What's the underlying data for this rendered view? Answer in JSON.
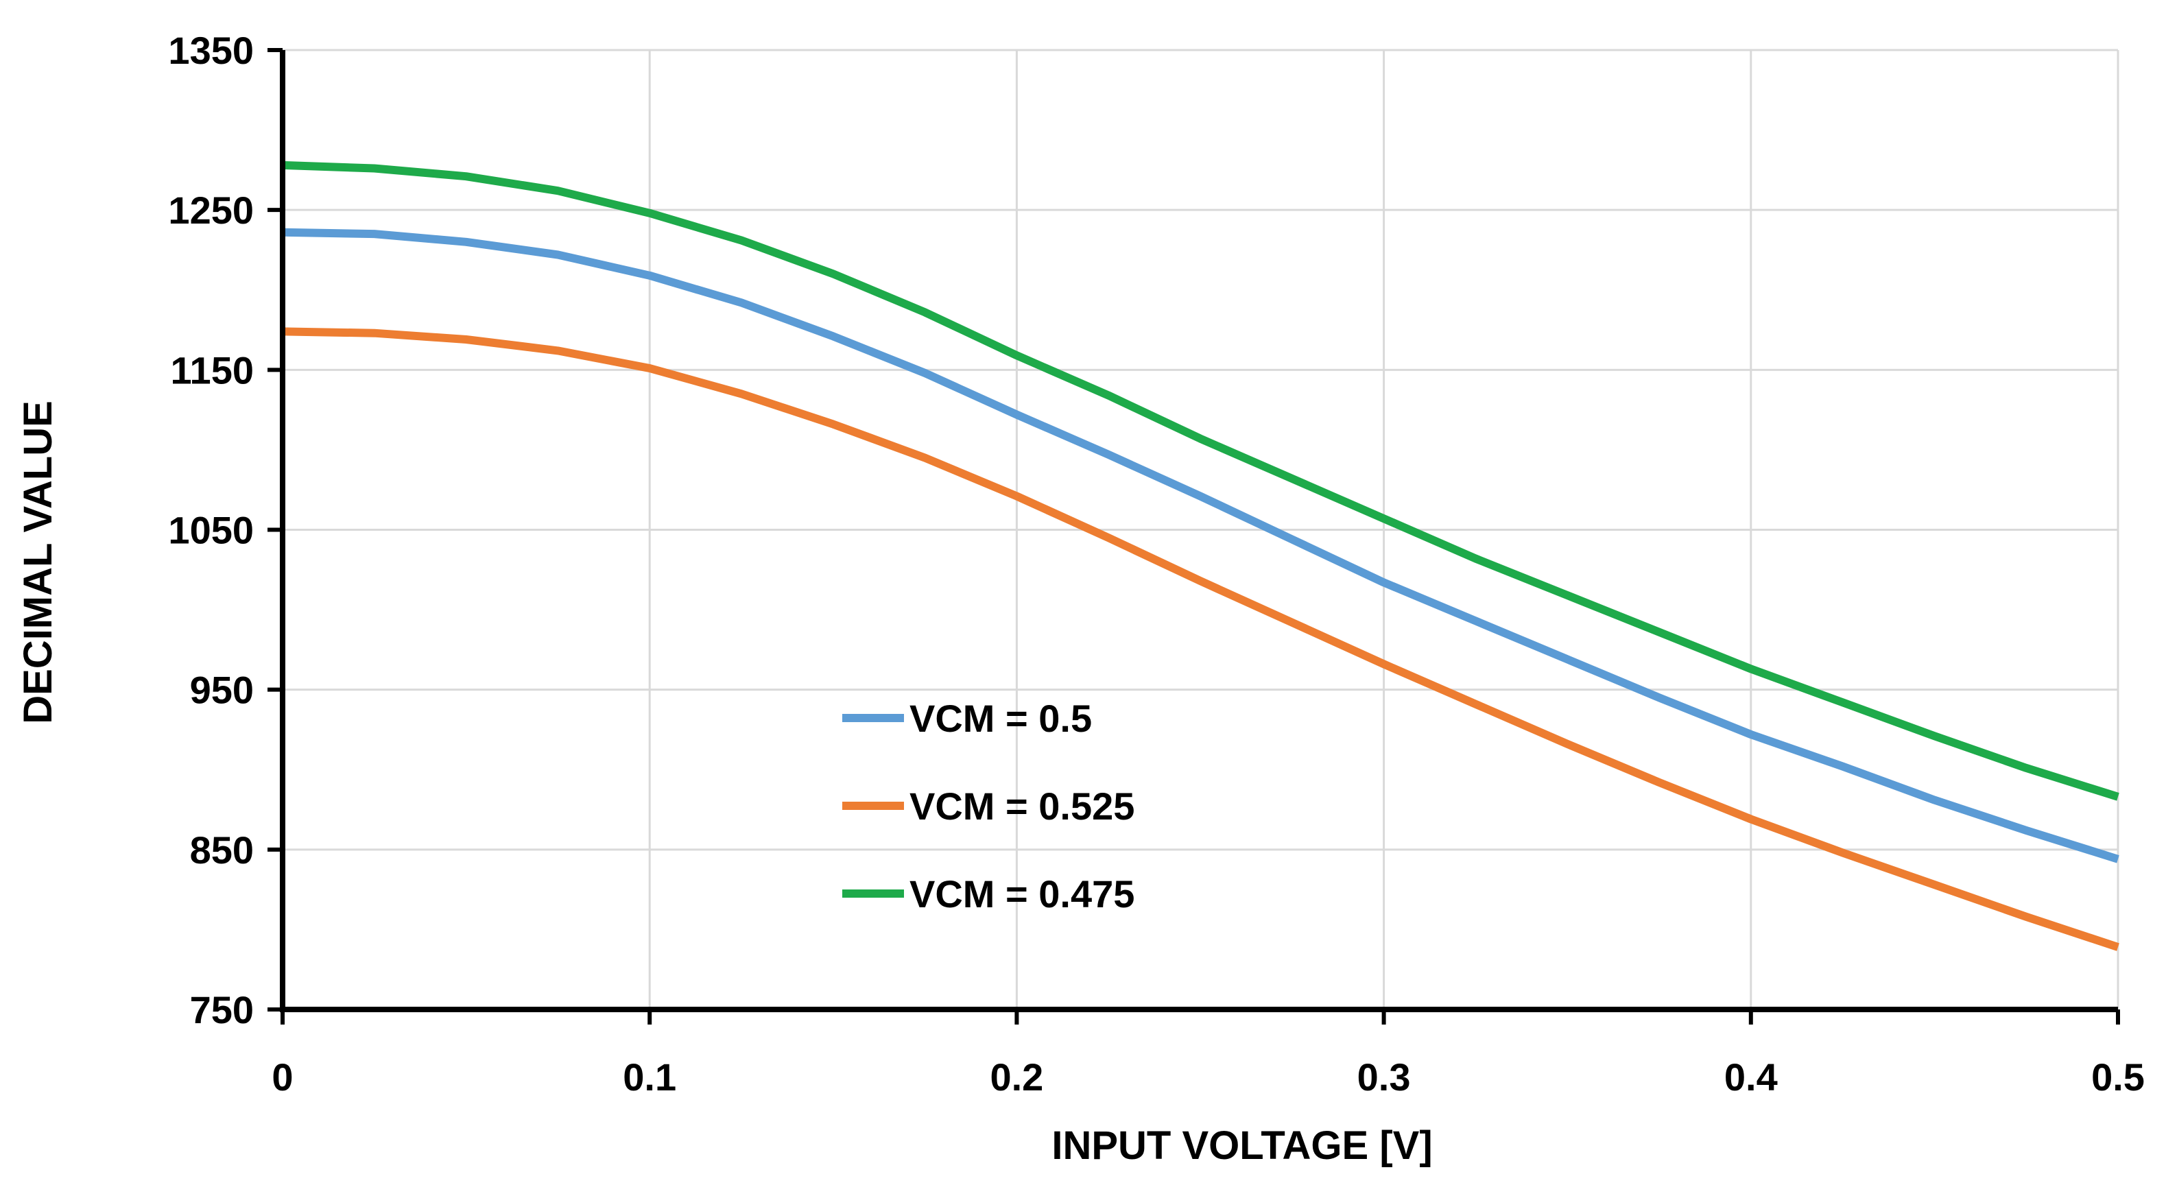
{
  "chart_data": {
    "type": "line",
    "title": "",
    "xlabel": "INPUT VOLTAGE [V]",
    "ylabel": "DECIMAL VALUE",
    "xlim": [
      0,
      0.5
    ],
    "ylim": [
      750,
      1350
    ],
    "x_ticks": [
      0,
      0.1,
      0.2,
      0.3,
      0.4,
      0.5
    ],
    "x_tick_labels": [
      "0",
      "0.1",
      "0.2",
      "0.3",
      "0.4",
      "0.5"
    ],
    "y_ticks": [
      750,
      850,
      950,
      1050,
      1150,
      1250,
      1350
    ],
    "y_tick_labels": [
      "750",
      "850",
      "950",
      "1050",
      "1150",
      "1250",
      "1350"
    ],
    "grid": true,
    "legend_position": "center",
    "x": [
      0,
      0.025,
      0.05,
      0.075,
      0.1,
      0.125,
      0.15,
      0.175,
      0.2,
      0.225,
      0.25,
      0.275,
      0.3,
      0.325,
      0.35,
      0.375,
      0.4,
      0.425,
      0.45,
      0.475,
      0.5
    ],
    "series": [
      {
        "name": "VCM = 0.5",
        "color": "#5B9BD5",
        "values": [
          1236,
          1235,
          1230,
          1222,
          1209,
          1192,
          1171,
          1148,
          1122,
          1097,
          1071,
          1044,
          1017,
          993,
          969,
          945,
          922,
          902,
          881,
          862,
          844
        ]
      },
      {
        "name": "VCM = 0.525",
        "color": "#ED7D31",
        "values": [
          1174,
          1173,
          1169,
          1162,
          1151,
          1135,
          1116,
          1095,
          1071,
          1045,
          1018,
          992,
          966,
          941,
          916,
          892,
          869,
          848,
          828,
          808,
          789
        ]
      },
      {
        "name": "VCM = 0.475",
        "color": "#1EAA4A",
        "values": [
          1278,
          1276,
          1271,
          1262,
          1248,
          1231,
          1210,
          1186,
          1159,
          1134,
          1107,
          1082,
          1057,
          1032,
          1009,
          986,
          963,
          942,
          921,
          901,
          883
        ]
      }
    ]
  }
}
